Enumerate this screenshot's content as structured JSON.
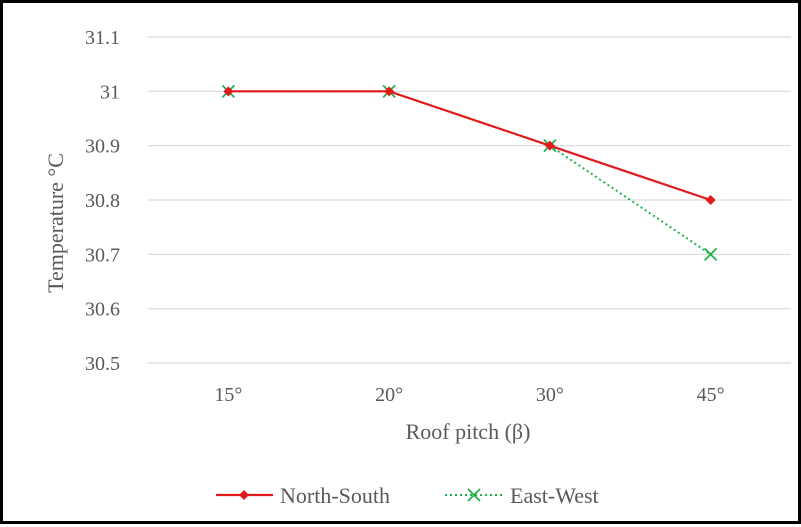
{
  "chart_data": {
    "type": "line",
    "title": "",
    "xlabel": "Roof pitch (β)",
    "ylabel": "Temperature °C",
    "categories": [
      "15°",
      "20°",
      "30°",
      "45°"
    ],
    "ylim": [
      30.5,
      31.1
    ],
    "yticks": [
      "30.5",
      "30.6",
      "30.7",
      "30.8",
      "30.9",
      "31",
      "31.1"
    ],
    "grid": true,
    "legend_position": "bottom",
    "series": [
      {
        "name": "North-South",
        "values": [
          31.0,
          31.0,
          30.9,
          30.8
        ],
        "color": "#e31a1c",
        "line": "solid",
        "marker": "diamond"
      },
      {
        "name": "East-West",
        "values": [
          31.0,
          31.0,
          30.9,
          30.7
        ],
        "color": "#21b24b",
        "line": "dotted",
        "marker": "x"
      }
    ]
  }
}
